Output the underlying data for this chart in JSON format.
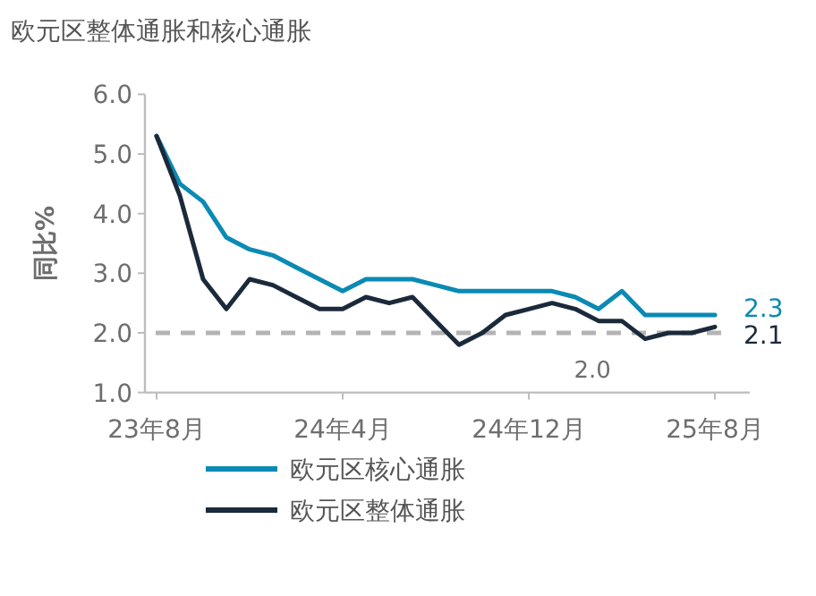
{
  "chart_data": {
    "type": "line",
    "title": "欧元区整体通胀和核心通胀",
    "ylabel": "同比%",
    "categories": [
      "23年8月",
      null,
      null,
      null,
      null,
      null,
      null,
      null,
      "24年4月",
      null,
      null,
      null,
      null,
      null,
      null,
      null,
      "24年12月",
      null,
      null,
      null,
      null,
      null,
      null,
      null,
      "25年8月"
    ],
    "ylim": [
      1,
      6
    ],
    "yticks": [
      {
        "value": 1,
        "label": "1.0"
      },
      {
        "value": 2,
        "label": "2.0"
      },
      {
        "value": 3,
        "label": "3.0"
      },
      {
        "value": 4,
        "label": "4.0"
      },
      {
        "value": 5,
        "label": "5.0"
      },
      {
        "value": 6,
        "label": "6.0"
      }
    ],
    "series": [
      {
        "name": "欧元区核心通胀",
        "color": "#0a8ab4",
        "values": [
          5.3,
          4.5,
          4.2,
          3.6,
          3.4,
          3.3,
          3.1,
          2.9,
          2.7,
          2.9,
          2.9,
          2.9,
          2.8,
          2.7,
          2.7,
          2.7,
          2.7,
          2.7,
          2.6,
          2.4,
          2.7,
          2.3,
          2.3,
          2.3,
          2.3
        ],
        "value_labels": [
          null,
          null,
          null,
          null,
          null,
          null,
          null,
          null,
          null,
          null,
          null,
          null,
          null,
          null,
          null,
          null,
          null,
          null,
          null,
          null,
          null,
          null,
          null,
          null,
          "2.3"
        ]
      },
      {
        "name": "欧元区整体通胀",
        "color": "#1b2a3b",
        "values": [
          5.3,
          4.3,
          2.9,
          2.4,
          2.9,
          2.8,
          2.6,
          2.4,
          2.4,
          2.6,
          2.5,
          2.6,
          2.2,
          1.8,
          2.0,
          2.3,
          2.4,
          2.5,
          2.4,
          2.2,
          2.2,
          1.9,
          2.0,
          2.0,
          2.1
        ],
        "value_labels": [
          null,
          null,
          null,
          null,
          null,
          null,
          null,
          null,
          null,
          null,
          null,
          null,
          null,
          null,
          null,
          null,
          null,
          null,
          null,
          null,
          null,
          null,
          null,
          null,
          "2.1"
        ]
      }
    ],
    "ref_lines": [
      {
        "axis": "y",
        "value": 2,
        "label": "2.0",
        "color": "#b3b3b3",
        "line_style": "dashed"
      }
    ],
    "legend": "bottom"
  }
}
